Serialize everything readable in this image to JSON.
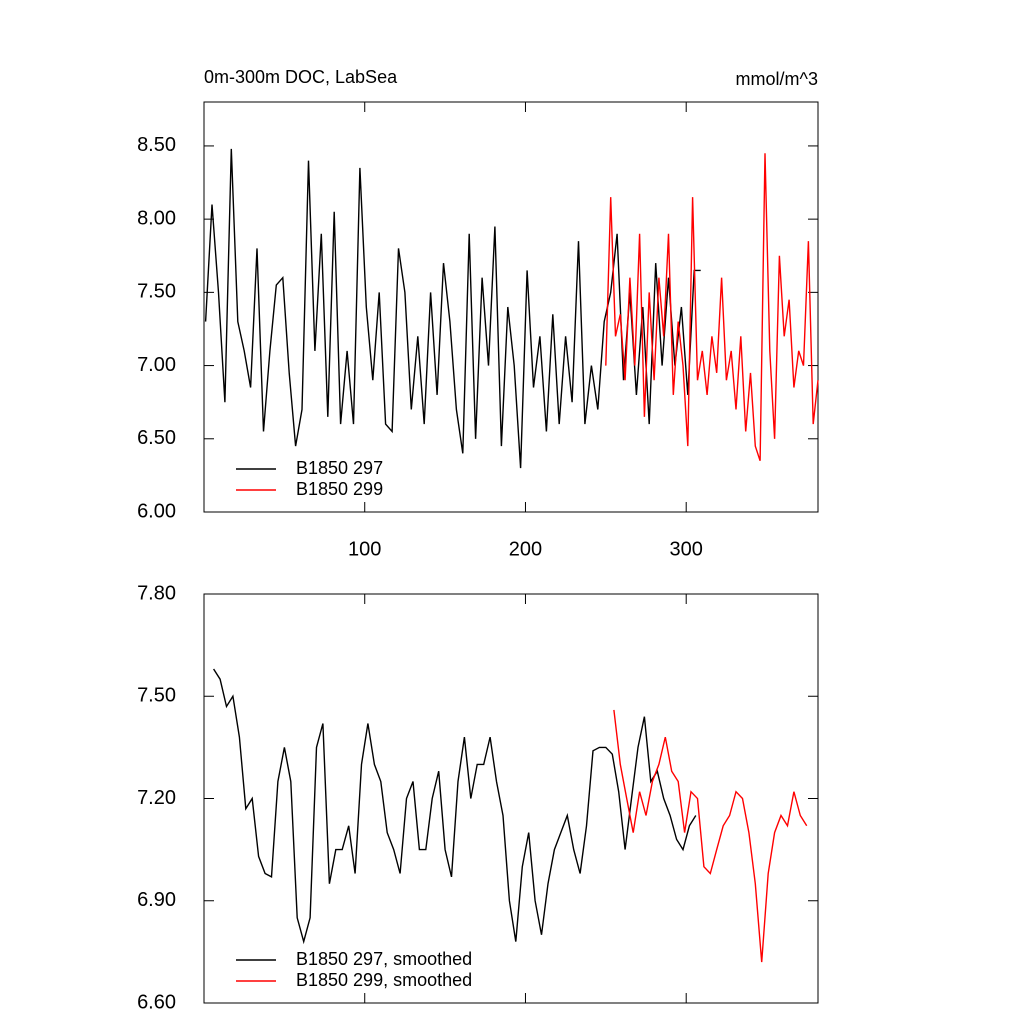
{
  "chart_data": [
    {
      "type": "line",
      "title": "0m-300m DOC, LabSea",
      "units": "mmol/m^3",
      "xlim": [
        0,
        382
      ],
      "xticks": [
        100,
        200,
        300
      ],
      "ylim": [
        6.0,
        8.8
      ],
      "yticks": [
        {
          "value": 6.0,
          "label": "6.00"
        },
        {
          "value": 6.5,
          "label": "6.50"
        },
        {
          "value": 7.0,
          "label": "7.00"
        },
        {
          "value": 7.5,
          "label": "7.50"
        },
        {
          "value": 8.0,
          "label": "8.00"
        },
        {
          "value": 8.5,
          "label": "8.50"
        }
      ],
      "series": [
        {
          "name": "B1850 297",
          "color": "#000000",
          "x": [
            1,
            5,
            9,
            13,
            17,
            21,
            25,
            29,
            33,
            37,
            41,
            45,
            49,
            53,
            57,
            61,
            65,
            69,
            73,
            77,
            81,
            85,
            89,
            93,
            97,
            101,
            105,
            109,
            113,
            117,
            121,
            125,
            129,
            133,
            137,
            141,
            145,
            149,
            153,
            157,
            161,
            165,
            169,
            173,
            177,
            181,
            185,
            189,
            193,
            197,
            201,
            205,
            209,
            213,
            217,
            221,
            225,
            229,
            233,
            237,
            241,
            245,
            249,
            253,
            257,
            261,
            265,
            269,
            273,
            277,
            281,
            285,
            289,
            293,
            297,
            301,
            305,
            309
          ],
          "values": [
            7.3,
            8.1,
            7.5,
            6.75,
            8.48,
            7.3,
            7.1,
            6.85,
            7.8,
            6.55,
            7.1,
            7.55,
            7.6,
            6.95,
            6.45,
            6.7,
            8.4,
            7.1,
            7.9,
            6.65,
            8.05,
            6.6,
            7.1,
            6.6,
            8.35,
            7.4,
            6.9,
            7.5,
            6.6,
            6.55,
            7.8,
            7.5,
            6.7,
            7.2,
            6.6,
            7.5,
            6.8,
            7.7,
            7.3,
            6.7,
            6.4,
            7.9,
            6.5,
            7.6,
            7.0,
            7.95,
            6.45,
            7.4,
            7.0,
            6.3,
            7.65,
            6.85,
            7.2,
            6.55,
            7.35,
            6.6,
            7.2,
            6.75,
            7.85,
            6.6,
            7.0,
            6.7,
            7.3,
            7.5,
            7.9,
            6.9,
            7.5,
            6.8,
            7.4,
            6.6,
            7.7,
            7.0,
            7.6,
            7.0,
            7.4,
            6.8,
            7.65,
            7.65
          ]
        },
        {
          "name": "B1850 299",
          "color": "#ff0000",
          "x": [
            250,
            253,
            256,
            259,
            262,
            265,
            268,
            271,
            274,
            277,
            280,
            283,
            286,
            289,
            292,
            295,
            298,
            301,
            304,
            307,
            310,
            313,
            316,
            319,
            322,
            325,
            328,
            331,
            334,
            337,
            340,
            343,
            346,
            349,
            352,
            355,
            358,
            361,
            364,
            367,
            370,
            373,
            376,
            379,
            382
          ],
          "values": [
            7.0,
            8.15,
            7.2,
            7.35,
            6.9,
            7.6,
            7.0,
            7.9,
            6.65,
            7.5,
            6.9,
            7.6,
            7.2,
            7.9,
            6.8,
            7.3,
            7.0,
            6.45,
            8.15,
            6.9,
            7.1,
            6.8,
            7.2,
            6.95,
            7.6,
            6.9,
            7.1,
            6.7,
            7.2,
            6.55,
            6.95,
            6.45,
            6.35,
            8.45,
            7.1,
            6.5,
            7.75,
            7.2,
            7.45,
            6.85,
            7.1,
            7.0,
            7.85,
            6.6,
            6.9
          ]
        }
      ]
    },
    {
      "type": "line",
      "xlim": [
        0,
        382
      ],
      "xticks": [
        100,
        200,
        300
      ],
      "ylim": [
        6.6,
        7.8
      ],
      "yticks": [
        {
          "value": 6.6,
          "label": "6.60"
        },
        {
          "value": 6.9,
          "label": "6.90"
        },
        {
          "value": 7.2,
          "label": "7.20"
        },
        {
          "value": 7.5,
          "label": "7.50"
        },
        {
          "value": 7.8,
          "label": "7.80"
        }
      ],
      "series": [
        {
          "name": "B1850 297, smoothed",
          "color": "#000000",
          "x": [
            6,
            10,
            14,
            18,
            22,
            26,
            30,
            34,
            38,
            42,
            46,
            50,
            54,
            58,
            62,
            66,
            70,
            74,
            78,
            82,
            86,
            90,
            94,
            98,
            102,
            106,
            110,
            114,
            118,
            122,
            126,
            130,
            134,
            138,
            142,
            146,
            150,
            154,
            158,
            162,
            166,
            170,
            174,
            178,
            182,
            186,
            190,
            194,
            198,
            202,
            206,
            210,
            214,
            218,
            222,
            226,
            230,
            234,
            238,
            242,
            246,
            250,
            254,
            258,
            262,
            266,
            270,
            274,
            278,
            282,
            286,
            290,
            294,
            298,
            302,
            306
          ],
          "values": [
            7.58,
            7.55,
            7.47,
            7.5,
            7.38,
            7.17,
            7.2,
            7.03,
            6.98,
            6.97,
            7.25,
            7.35,
            7.25,
            6.85,
            6.78,
            6.85,
            7.35,
            7.42,
            6.95,
            7.05,
            7.05,
            7.12,
            6.98,
            7.3,
            7.42,
            7.3,
            7.25,
            7.1,
            7.05,
            6.98,
            7.2,
            7.25,
            7.05,
            7.05,
            7.2,
            7.28,
            7.05,
            6.97,
            7.25,
            7.38,
            7.2,
            7.3,
            7.3,
            7.38,
            7.25,
            7.15,
            6.9,
            6.78,
            7.0,
            7.1,
            6.9,
            6.8,
            6.95,
            7.05,
            7.1,
            7.15,
            7.05,
            6.98,
            7.12,
            7.34,
            7.35,
            7.35,
            7.33,
            7.22,
            7.05,
            7.2,
            7.35,
            7.44,
            7.25,
            7.28,
            7.2,
            7.15,
            7.08,
            7.05,
            7.12,
            7.15
          ]
        },
        {
          "name": "B1850 299, smoothed",
          "color": "#ff0000",
          "x": [
            255,
            259,
            263,
            267,
            271,
            275,
            279,
            283,
            287,
            291,
            295,
            299,
            303,
            307,
            311,
            315,
            319,
            323,
            327,
            331,
            335,
            339,
            343,
            347,
            351,
            355,
            359,
            363,
            367,
            371,
            375
          ],
          "values": [
            7.46,
            7.3,
            7.2,
            7.1,
            7.22,
            7.15,
            7.25,
            7.3,
            7.38,
            7.28,
            7.25,
            7.1,
            7.22,
            7.2,
            7.0,
            6.98,
            7.05,
            7.12,
            7.15,
            7.22,
            7.2,
            7.1,
            6.95,
            6.72,
            6.98,
            7.1,
            7.15,
            7.12,
            7.22,
            7.15,
            7.12
          ]
        }
      ]
    }
  ]
}
